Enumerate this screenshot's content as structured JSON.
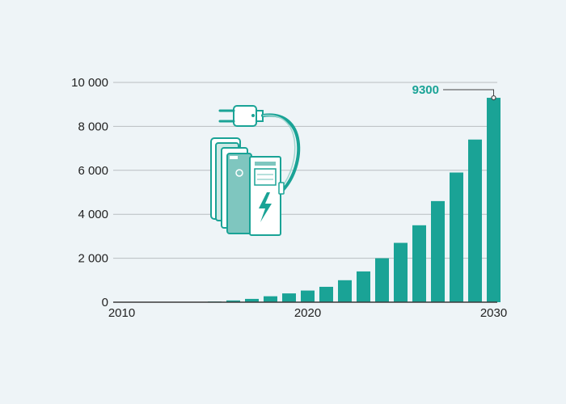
{
  "colors": {
    "background": "#eef4f7",
    "bar": "#1aa396",
    "grid": "#b9bec2",
    "baseline": "#3a3a3a",
    "text": "#222222",
    "accent": "#1aa396",
    "icon_fill": "#9fd6d0",
    "icon_stroke": "#1aa396"
  },
  "icon": {
    "name": "ev-charging-station-icon"
  },
  "chart_data": {
    "type": "bar",
    "title": "",
    "xlabel": "",
    "ylabel": "",
    "x": [
      2010,
      2011,
      2012,
      2013,
      2014,
      2015,
      2016,
      2017,
      2018,
      2019,
      2020,
      2021,
      2022,
      2023,
      2024,
      2025,
      2026,
      2027,
      2028,
      2029,
      2030
    ],
    "values": [
      0,
      0,
      0,
      0,
      5,
      30,
      80,
      150,
      270,
      400,
      530,
      700,
      1000,
      1400,
      2000,
      2700,
      3500,
      4600,
      5900,
      7400,
      9300
    ],
    "ylim": [
      0,
      10000
    ],
    "yticks": [
      0,
      2000,
      4000,
      6000,
      8000,
      10000
    ],
    "ytick_labels": [
      "0",
      "2 000",
      "4 000",
      "6 000",
      "8 000",
      "10 000"
    ],
    "xticks": [
      2010,
      2020,
      2030
    ],
    "xtick_labels": [
      "2010",
      "2020",
      "2030"
    ],
    "grid": true,
    "annotation": {
      "x": 2030,
      "y": 9300,
      "label": "9300"
    }
  }
}
